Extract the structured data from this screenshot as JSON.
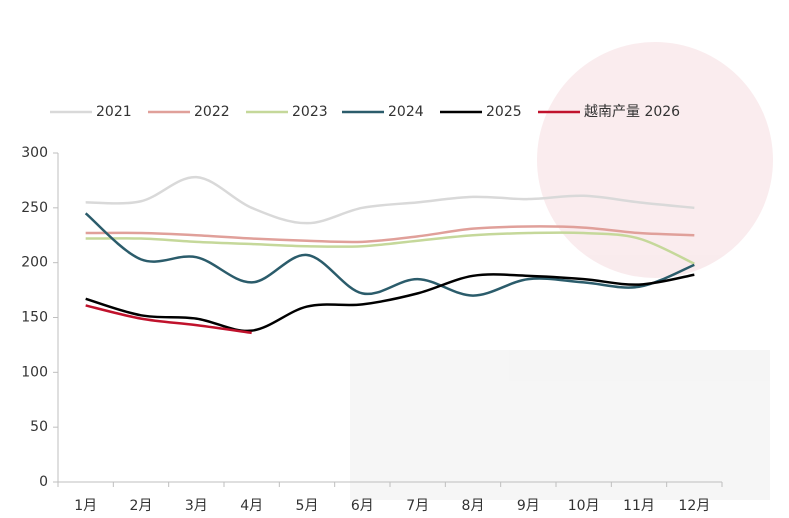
{
  "chart_data": {
    "type": "line",
    "categories": [
      "1月",
      "2月",
      "3月",
      "4月",
      "5月",
      "6月",
      "7月",
      "8月",
      "9月",
      "10月",
      "11月",
      "12月"
    ],
    "series": [
      {
        "name": "2021",
        "color": "#d9d9d9",
        "values": [
          255,
          256,
          278,
          250,
          236,
          250,
          255,
          260,
          258,
          261,
          255,
          250
        ]
      },
      {
        "name": "2022",
        "color": "#e0a09a",
        "values": [
          227,
          227,
          225,
          222,
          220,
          219,
          224,
          231,
          233,
          232,
          227,
          225
        ]
      },
      {
        "name": "2023",
        "color": "#c5d89a",
        "values": [
          222,
          222,
          219,
          217,
          215,
          215,
          220,
          225,
          227,
          227,
          222,
          199
        ]
      },
      {
        "name": "2024",
        "color": "#2b5c6b",
        "values": [
          245,
          203,
          205,
          182,
          207,
          172,
          185,
          170,
          185,
          182,
          178,
          198
        ]
      },
      {
        "name": "2025",
        "color": "#000000",
        "values": [
          167,
          152,
          149,
          138,
          160,
          162,
          172,
          188,
          188,
          185,
          180,
          189
        ]
      },
      {
        "name": "越南产量 2026",
        "color": "#c0122c",
        "values": [
          161,
          149,
          143,
          136,
          null,
          null,
          null,
          null,
          null,
          null,
          null,
          null
        ]
      }
    ],
    "ylim": [
      0,
      300
    ],
    "yticks": [
      0,
      50,
      100,
      150,
      200,
      250,
      300
    ],
    "legend": "top"
  }
}
